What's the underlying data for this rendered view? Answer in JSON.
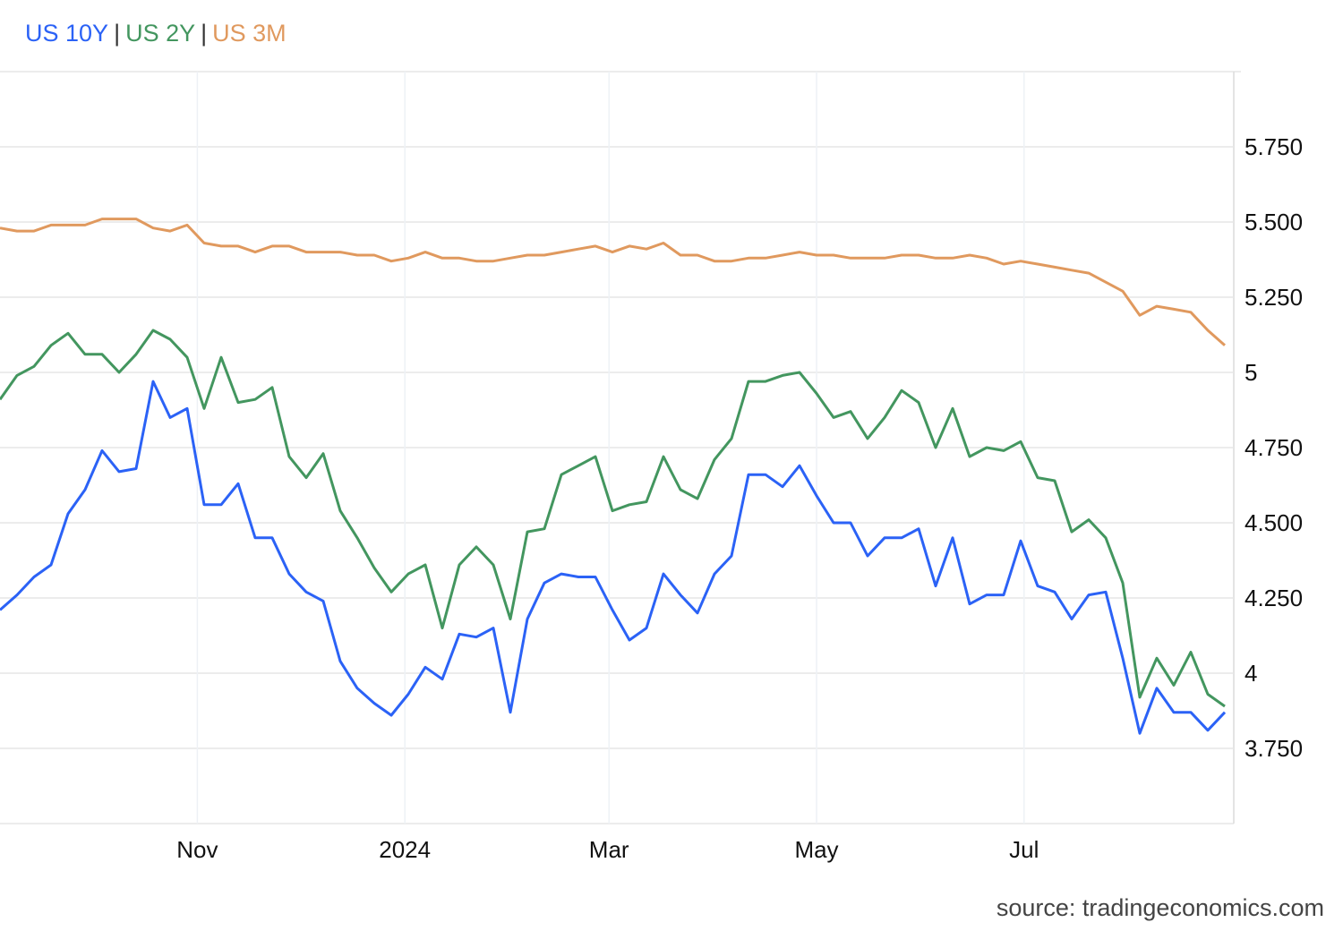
{
  "chart_data": {
    "type": "line",
    "title": "",
    "xlabel": "",
    "ylabel": "",
    "start_date": "2023-09-04",
    "step_days": 5,
    "ylim": [
      3.5,
      6.0
    ],
    "xlim": [
      "2023-09-04",
      "2024-09-01"
    ],
    "grid": true,
    "legend_position": "top-left",
    "y_ticks": [
      {
        "value": 3.75,
        "label": "3.750"
      },
      {
        "value": 4.0,
        "label": "4"
      },
      {
        "value": 4.25,
        "label": "4.250"
      },
      {
        "value": 4.5,
        "label": "4.500"
      },
      {
        "value": 4.75,
        "label": "4.750"
      },
      {
        "value": 5.0,
        "label": "5"
      },
      {
        "value": 5.25,
        "label": "5.250"
      },
      {
        "value": 5.5,
        "label": "5.500"
      },
      {
        "value": 5.75,
        "label": "5.750"
      }
    ],
    "x_ticks": [
      {
        "date": "2023-11-01",
        "label": "Nov"
      },
      {
        "date": "2024-01-01",
        "label": "2024"
      },
      {
        "date": "2024-03-01",
        "label": "Mar"
      },
      {
        "date": "2024-05-01",
        "label": "May"
      },
      {
        "date": "2024-07-01",
        "label": "Jul"
      }
    ],
    "series": [
      {
        "name": "US 10Y",
        "color": "#2b62f6",
        "values": [
          4.21,
          4.26,
          4.32,
          4.36,
          4.53,
          4.61,
          4.74,
          4.67,
          4.68,
          4.97,
          4.85,
          4.88,
          4.56,
          4.56,
          4.63,
          4.45,
          4.45,
          4.33,
          4.27,
          4.24,
          4.04,
          3.95,
          3.9,
          3.86,
          3.93,
          4.02,
          3.98,
          4.13,
          4.12,
          4.15,
          3.87,
          4.18,
          4.3,
          4.33,
          4.32,
          4.32,
          4.21,
          4.11,
          4.15,
          4.33,
          4.26,
          4.2,
          4.33,
          4.39,
          4.66,
          4.66,
          4.62,
          4.69,
          4.59,
          4.5,
          4.5,
          4.39,
          4.45,
          4.45,
          4.48,
          4.29,
          4.45,
          4.23,
          4.26,
          4.26,
          4.44,
          4.29,
          4.27,
          4.18,
          4.26,
          4.27,
          4.05,
          3.8,
          3.95,
          3.87,
          3.87,
          3.81,
          3.87
        ]
      },
      {
        "name": "US 2Y",
        "color": "#43965f",
        "values": [
          4.91,
          4.99,
          5.02,
          5.09,
          5.13,
          5.06,
          5.06,
          5.0,
          5.06,
          5.14,
          5.11,
          5.05,
          4.88,
          5.05,
          4.9,
          4.91,
          4.95,
          4.72,
          4.65,
          4.73,
          4.54,
          4.45,
          4.35,
          4.27,
          4.33,
          4.36,
          4.15,
          4.36,
          4.42,
          4.36,
          4.18,
          4.47,
          4.48,
          4.66,
          4.69,
          4.72,
          4.54,
          4.56,
          4.57,
          4.72,
          4.61,
          4.58,
          4.71,
          4.78,
          4.97,
          4.97,
          4.99,
          5.0,
          4.93,
          4.85,
          4.87,
          4.78,
          4.85,
          4.94,
          4.9,
          4.75,
          4.88,
          4.72,
          4.75,
          4.74,
          4.77,
          4.65,
          4.64,
          4.47,
          4.51,
          4.45,
          4.3,
          3.92,
          4.05,
          3.96,
          4.07,
          3.93,
          3.89
        ]
      },
      {
        "name": "US 3M",
        "color": "#e0995e",
        "values": [
          5.48,
          5.47,
          5.47,
          5.49,
          5.49,
          5.49,
          5.51,
          5.51,
          5.51,
          5.48,
          5.47,
          5.49,
          5.43,
          5.42,
          5.42,
          5.4,
          5.42,
          5.42,
          5.4,
          5.4,
          5.4,
          5.39,
          5.39,
          5.37,
          5.38,
          5.4,
          5.38,
          5.38,
          5.37,
          5.37,
          5.38,
          5.39,
          5.39,
          5.4,
          5.41,
          5.42,
          5.4,
          5.42,
          5.41,
          5.43,
          5.39,
          5.39,
          5.37,
          5.37,
          5.38,
          5.38,
          5.39,
          5.4,
          5.39,
          5.39,
          5.38,
          5.38,
          5.38,
          5.39,
          5.39,
          5.38,
          5.38,
          5.39,
          5.38,
          5.36,
          5.37,
          5.36,
          5.35,
          5.34,
          5.33,
          5.3,
          5.27,
          5.19,
          5.22,
          5.21,
          5.2,
          5.14,
          5.09
        ]
      }
    ],
    "source": "source: tradingeconomics.com"
  },
  "legend": {
    "separator": "|"
  }
}
